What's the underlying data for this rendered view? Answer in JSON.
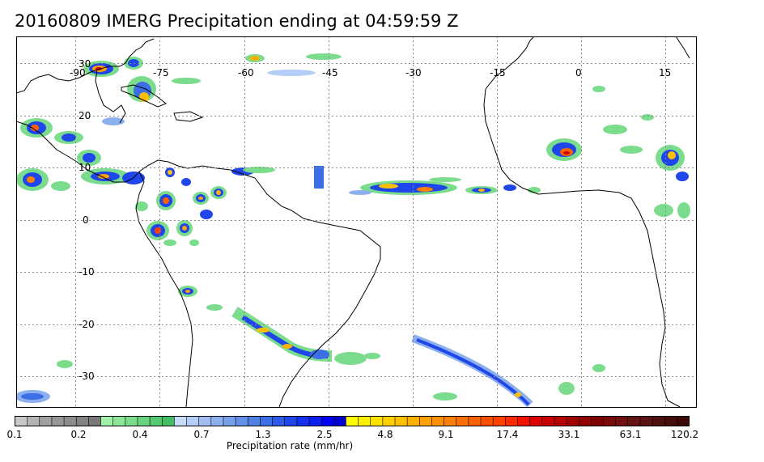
{
  "title": "20160809 IMERG Precipitation ending at 04:59:59 Z",
  "map": {
    "projection": "cylindrical-equidistant",
    "lon_range": [
      -97,
      19
    ],
    "lat_range": [
      -35,
      36
    ],
    "lon_ticks": [
      "-90",
      "-75",
      "-60",
      "-45",
      "-30",
      "-15",
      "0",
      "15"
    ],
    "lat_ticks": [
      "30",
      "20",
      "10",
      "0",
      "-10",
      "-20",
      "-30"
    ],
    "gridlines": true,
    "coastline_color": "#000000",
    "gridline_color": "#888888"
  },
  "colorbar": {
    "title": "Precipitation rate (mm/hr)",
    "tick_labels": [
      "0.1",
      "0.2",
      "0.4",
      "0.7",
      "1.3",
      "2.5",
      "4.8",
      "9.1",
      "17.4",
      "33.1",
      "63.1",
      "120.2"
    ],
    "colors": [
      "#c8c8c8",
      "#b4b4b4",
      "#a0a0a0",
      "#969696",
      "#8c8c8c",
      "#828282",
      "#787878",
      "#9ff0a8",
      "#8ce69a",
      "#7adc8c",
      "#68d27e",
      "#56c870",
      "#44be62",
      "#c8dcfa",
      "#b4cdf6",
      "#a0bef2",
      "#8cafee",
      "#78a0ea",
      "#6491e6",
      "#5082e2",
      "#3c6ee6",
      "#2d5ae8",
      "#1e46ea",
      "#1432ee",
      "#0a1ef0",
      "#0000f0",
      "#0000d2",
      "#ffff00",
      "#fff000",
      "#ffe000",
      "#ffd000",
      "#ffc000",
      "#ffb000",
      "#ffa000",
      "#ff9000",
      "#ff8000",
      "#ff7000",
      "#ff6000",
      "#ff5000",
      "#ff4000",
      "#ff2a00",
      "#f01400",
      "#dc0000",
      "#c80000",
      "#b40000",
      "#a00000",
      "#900000",
      "#800000",
      "#7a0a0a",
      "#701010",
      "#641414",
      "#5a1414",
      "#501010",
      "#460c0c",
      "#3c0808"
    ],
    "gray_hex": "#999999",
    "green_hex": "#7adc8c",
    "blue_hex": "#1e46ea",
    "yellow_hex": "#ffff00",
    "orange_hex": "#ff8000",
    "red_hex": "#d20000"
  }
}
